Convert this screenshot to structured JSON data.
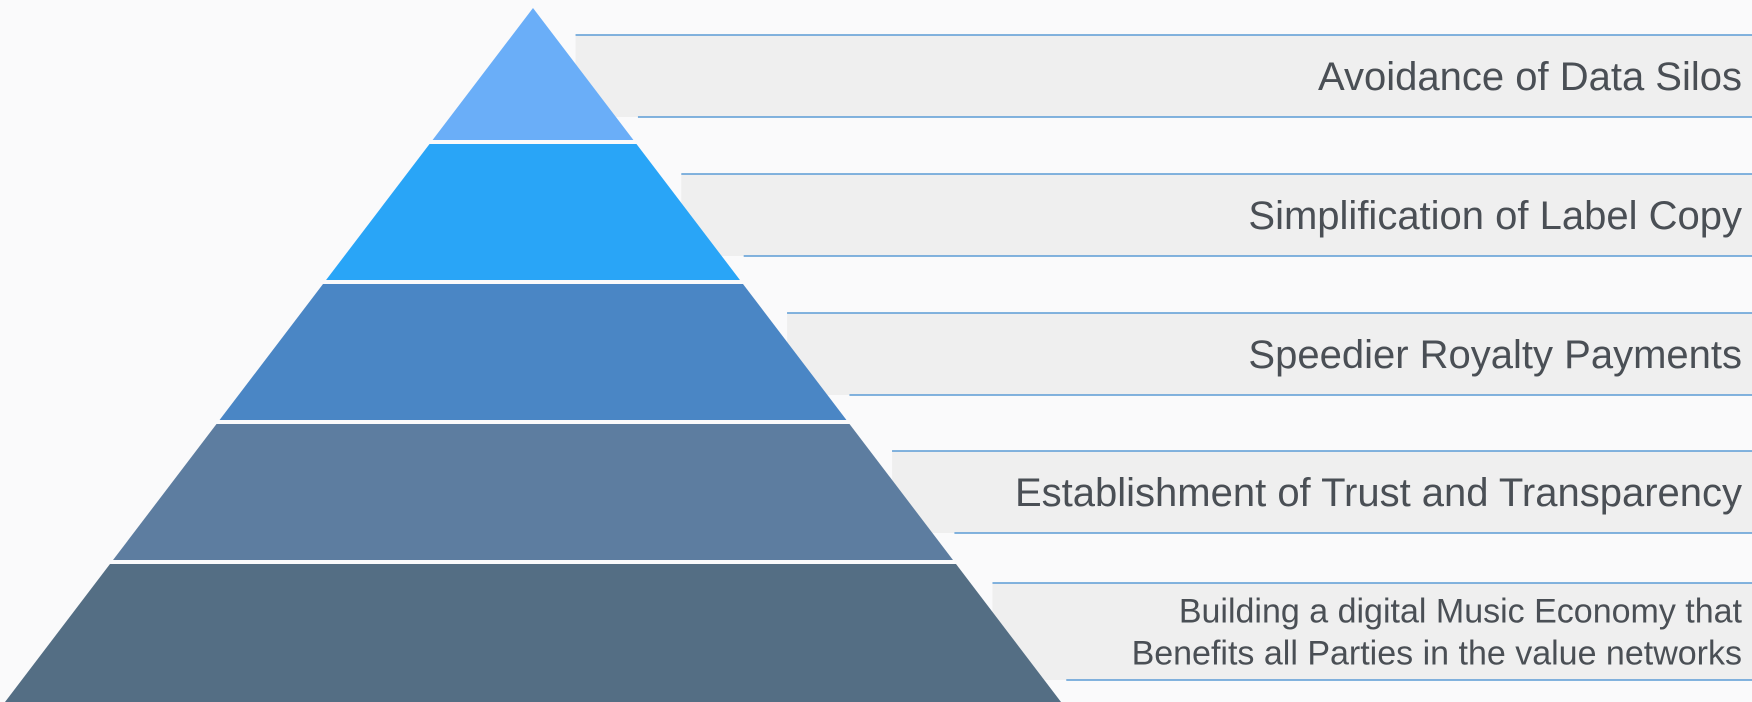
{
  "colors": {
    "page_background": "#fafafb",
    "band_fill": "#efefef",
    "band_line": "#5b9bd5",
    "label_text": "#4a4f55",
    "layer_separator": "#ffffff"
  },
  "pyramid": {
    "layers": [
      {
        "level": 1,
        "color": "#6aaef8",
        "lines": [
          "Avoidance of Data Silos"
        ]
      },
      {
        "level": 2,
        "color": "#29a5f7",
        "lines": [
          "Simplification of Label Copy"
        ]
      },
      {
        "level": 3,
        "color": "#4a86c5",
        "lines": [
          "Speedier Royalty Payments"
        ]
      },
      {
        "level": 4,
        "color": "#5d7da0",
        "lines": [
          "Establishment of Trust and Transparency"
        ]
      },
      {
        "level": 5,
        "color": "#546e84",
        "lines": [
          "Building a digital Music Economy that",
          "Benefits all Parties in the value networks"
        ]
      }
    ]
  }
}
